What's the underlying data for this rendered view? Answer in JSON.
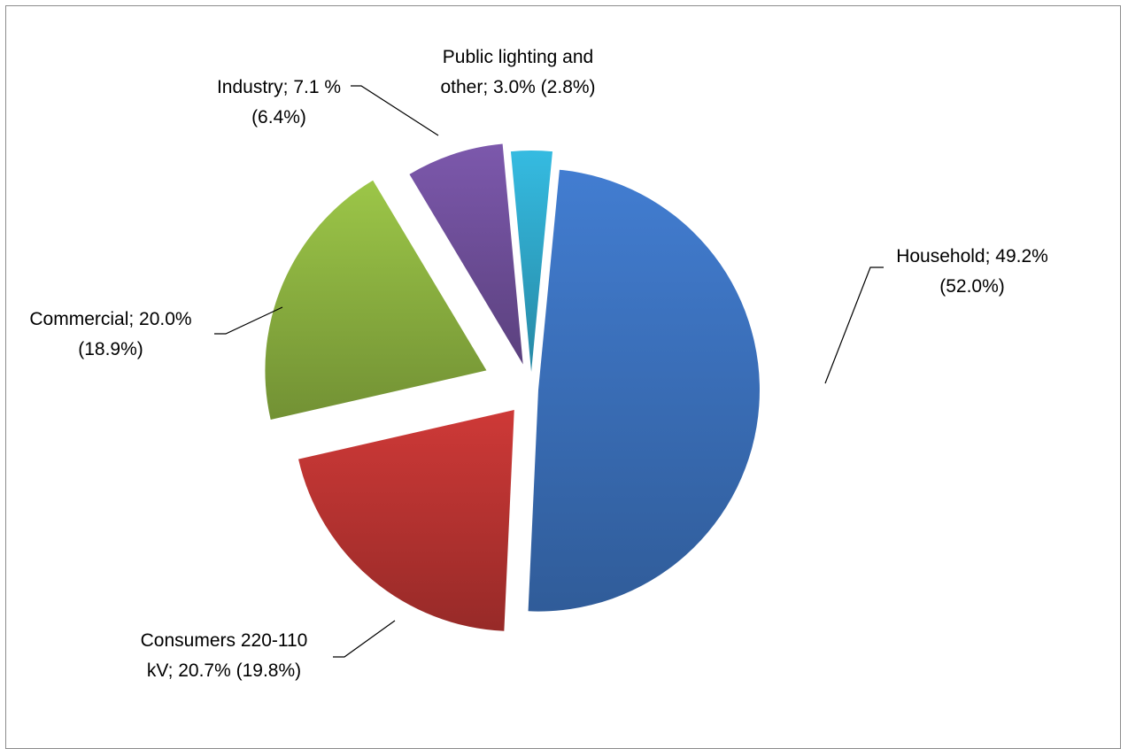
{
  "chart_data": {
    "type": "pie",
    "title": "",
    "slices": [
      {
        "name": "Household",
        "value": 49.2,
        "compare": 52.0,
        "color": "#3b70bb",
        "label_lines": [
          "Household; 49.2%",
          "(52.0%)"
        ]
      },
      {
        "name": "Consumers 220-110 kV",
        "value": 20.7,
        "compare": 19.8,
        "color": "#b83331",
        "label_lines": [
          "Consumers 220-110",
          "kV;  20.7%  (19.8%)"
        ]
      },
      {
        "name": "Commercial",
        "value": 20.0,
        "compare": 18.9,
        "color": "#8bb140",
        "label_lines": [
          "Commercial; 20.0%",
          "(18.9%)"
        ]
      },
      {
        "name": "Industry",
        "value": 7.1,
        "compare": 6.4,
        "color": "#6f4f9a",
        "label_lines": [
          "Industry; 7.1  %",
          "(6.4%)"
        ]
      },
      {
        "name": "Public lighting and other",
        "value": 3.0,
        "compare": 2.8,
        "color": "#2fa7c9",
        "label_lines": [
          "Public lighting and",
          "other; 3.0% (2.8%)"
        ]
      }
    ],
    "legend": "none",
    "exploded": true
  }
}
